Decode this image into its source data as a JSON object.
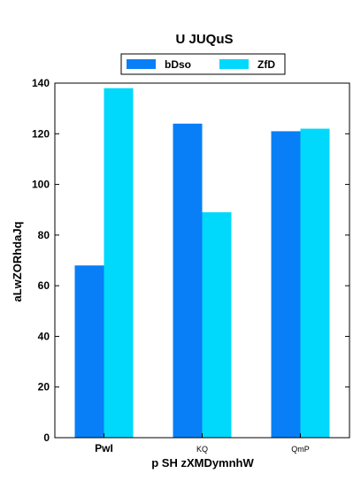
{
  "chart_data": {
    "type": "bar",
    "title": "U JUQuS",
    "xlabel": "p SH zXMDymnhW",
    "ylabel": "aLwZORhdaJq",
    "categories": [
      "PwI",
      "KQ",
      "QmP"
    ],
    "category_label_bold": [
      true,
      false,
      false
    ],
    "series": [
      {
        "name": "bDso",
        "color": "#087ff6",
        "values": [
          68,
          124,
          121
        ]
      },
      {
        "name": "ZfD",
        "color": "#00d8fc",
        "values": [
          138,
          89,
          122
        ]
      }
    ],
    "ylim": [
      0,
      140
    ],
    "yticks": [
      0,
      20,
      40,
      60,
      80,
      100,
      120,
      140
    ],
    "grid": false,
    "legend_position": "top-center"
  }
}
